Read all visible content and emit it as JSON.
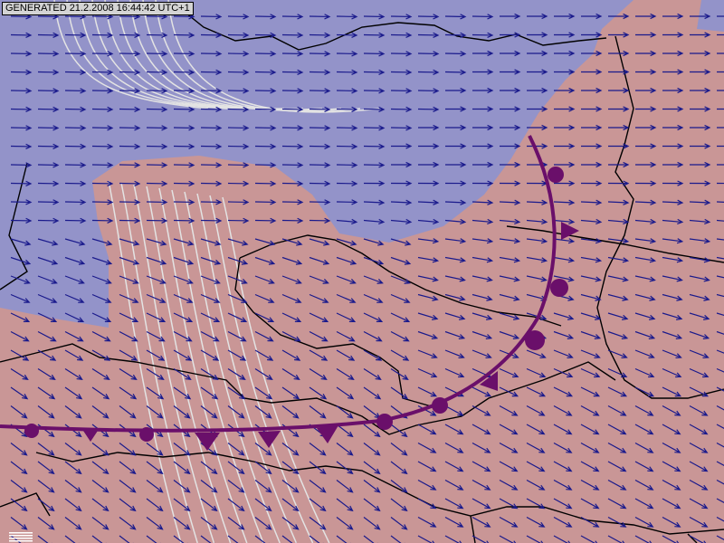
{
  "header": {
    "generated_label": "GENERATED 21.2.2008 16:44:42 UTC+1"
  },
  "colors": {
    "cold_region": "#9393c9",
    "warm_region": "#c99696",
    "wind_arrow": "#1a1a8c",
    "front": "#6a0f6a",
    "isoline": "#e0e0e0",
    "border": "#000000"
  },
  "legend_icon": "scale-bars-icon"
}
